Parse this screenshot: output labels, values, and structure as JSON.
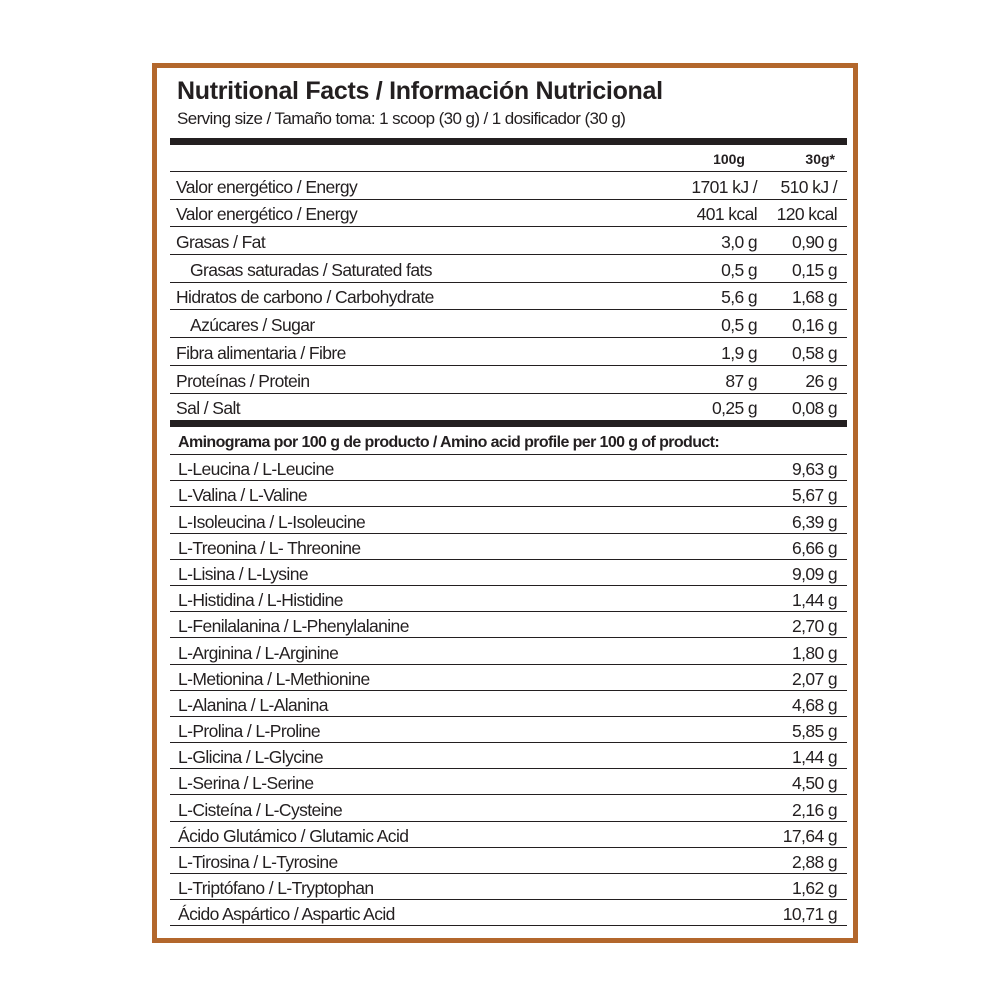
{
  "title": "Nutritional Facts / Información Nutricional",
  "serving": "Serving size / Tamaño toma: 1 scoop (30 g) / 1 dosificador (30 g)",
  "columns": {
    "per100": "100g",
    "perServing": "30g*"
  },
  "nutrients": [
    {
      "label": "Valor energético / Energy",
      "v100": "1701 kJ /",
      "vServ": "510 kJ /",
      "indent": false
    },
    {
      "label": "Valor energético / Energy",
      "v100": "401 kcal",
      "vServ": "120 kcal",
      "indent": false
    },
    {
      "label": "Grasas / Fat",
      "v100": "3,0 g",
      "vServ": "0,90 g",
      "indent": false
    },
    {
      "label": "Grasas saturadas / Saturated fats",
      "v100": "0,5 g",
      "vServ": "0,15 g",
      "indent": true
    },
    {
      "label": "Hidratos de carbono / Carbohydrate",
      "v100": "5,6 g",
      "vServ": "1,68 g",
      "indent": false
    },
    {
      "label": "Azúcares / Sugar",
      "v100": "0,5 g",
      "vServ": "0,16 g",
      "indent": true
    },
    {
      "label": "Fibra alimentaria / Fibre",
      "v100": "1,9 g",
      "vServ": "0,58 g",
      "indent": false
    },
    {
      "label": "Proteínas / Protein",
      "v100": "87 g",
      "vServ": "26 g",
      "indent": false
    },
    {
      "label": "Sal / Salt",
      "v100": "0,25 g",
      "vServ": "0,08 g",
      "indent": false
    }
  ],
  "amino_header": "Aminograma por 100 g de producto / Amino acid profile per 100 g of product:",
  "amino": [
    {
      "label": "L-Leucina / L-Leucine",
      "value": "9,63 g"
    },
    {
      "label": "L-Valina / L-Valine",
      "value": "5,67 g"
    },
    {
      "label": "L-Isoleucina / L-Isoleucine",
      "value": "6,39 g"
    },
    {
      "label": "L-Treonina / L- Threonine",
      "value": "6,66 g"
    },
    {
      "label": "L-Lisina / L-Lysine",
      "value": "9,09 g"
    },
    {
      "label": "L-Histidina / L-Histidine",
      "value": "1,44 g"
    },
    {
      "label": "L-Fenilalanina / L-Phenylalanine",
      "value": "2,70 g"
    },
    {
      "label": "L-Arginina / L-Arginine",
      "value": "1,80 g"
    },
    {
      "label": "L-Metionina / L-Methionine",
      "value": "2,07 g"
    },
    {
      "label": "L-Alanina / L-Alanina",
      "value": "4,68 g"
    },
    {
      "label": "L-Prolina / L-Proline",
      "value": "5,85 g"
    },
    {
      "label": "L-Glicina / L-Glycine",
      "value": "1,44 g"
    },
    {
      "label": "L-Serina / L-Serine",
      "value": "4,50 g"
    },
    {
      "label": "L-Cisteína / L-Cysteine",
      "value": "2,16 g"
    },
    {
      "label": "Ácido Glutámico / Glutamic Acid",
      "value": "17,64 g"
    },
    {
      "label": "L-Tirosina / L-Tyrosine",
      "value": "2,88 g"
    },
    {
      "label": "L-Triptófano / L-Tryptophan",
      "value": "1,62 g"
    },
    {
      "label": "Ácido Aspártico / Aspartic Acid",
      "value": "10,71 g"
    }
  ],
  "colors": {
    "frame": "#b3672c",
    "ink": "#231f20"
  }
}
